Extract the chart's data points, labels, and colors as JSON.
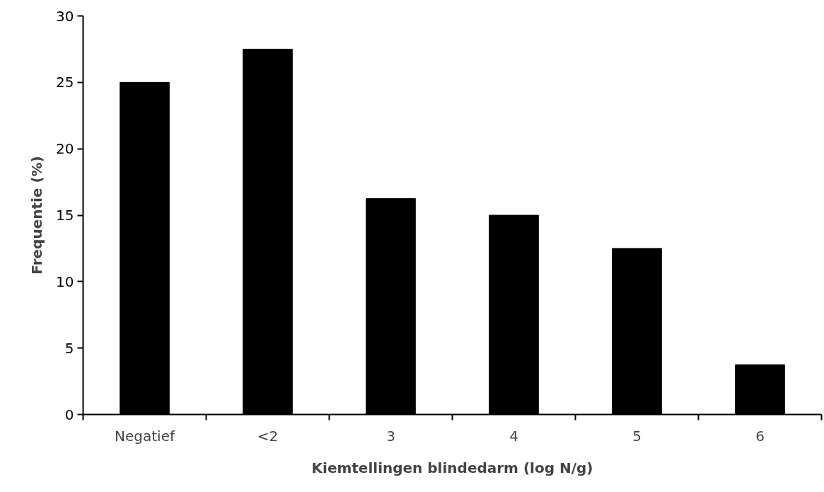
{
  "chart_data": {
    "type": "bar",
    "xlabel": "Kiemtellingen blindedarm (log N/g)",
    "ylabel": "Frequentie (%)",
    "categories": [
      "Negatief",
      "<2",
      "3",
      "4",
      "5",
      "6"
    ],
    "values": [
      25,
      27.5,
      16.25,
      15,
      12.5,
      3.75
    ],
    "color": "#000000",
    "ylim": [
      0,
      30
    ],
    "yticks": [
      0,
      5,
      10,
      15,
      20,
      25,
      30
    ],
    "grid": false
  }
}
